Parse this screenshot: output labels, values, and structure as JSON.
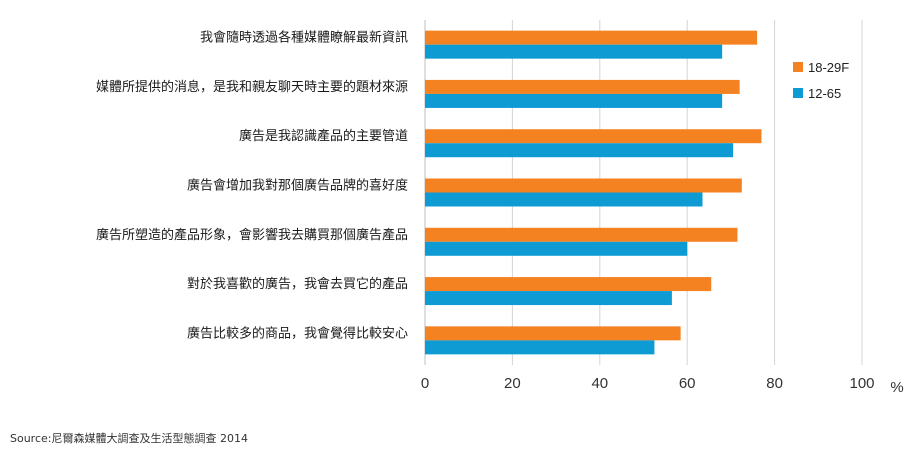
{
  "chart_data": {
    "type": "bar",
    "orientation": "horizontal",
    "categories": [
      "我會隨時透過各種媒體瞭解最新資訊",
      "媒體所提供的消息，是我和親友聊天時主要的題材來源",
      "廣告是我認識產品的主要管道",
      "廣告會增加我對那個廣告品牌的喜好度",
      "廣告所塑造的產品形象，會影響我去購買那個廣告產品",
      "對於我喜歡的廣告，我會去買它的產品",
      "廣告比較多的商品，我會覺得比較安心"
    ],
    "series": [
      {
        "name": "18-29F",
        "color": "#F58220",
        "values": [
          76,
          72,
          77,
          72.5,
          71.5,
          65.5,
          58.5
        ]
      },
      {
        "name": "12-65",
        "color": "#0E9BD4",
        "values": [
          68,
          68,
          70.5,
          63.5,
          60,
          56.5,
          52.5
        ]
      }
    ],
    "xlim": [
      0,
      100
    ],
    "xticks": [
      "0",
      "20",
      "40",
      "60",
      "80",
      "100"
    ],
    "xunit": "%",
    "grid": true,
    "legend_position": "right"
  },
  "source": "Source:尼爾森媒體大調查及生活型態調查 2014"
}
